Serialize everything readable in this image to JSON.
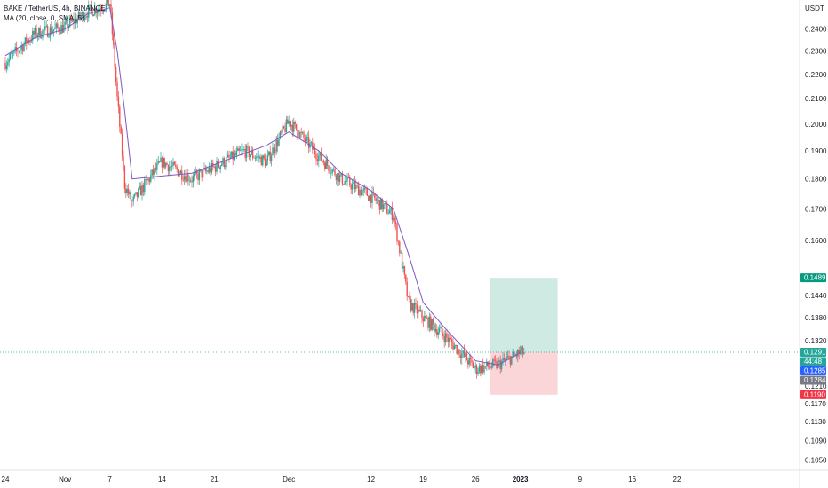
{
  "legend": {
    "title": "BAKE / TetherUS, 4h, BINANCE",
    "indicator": "MA (20, close, 0, SMA, 5)"
  },
  "currency_label": "USDT",
  "colors": {
    "up": "#26a69a",
    "down": "#ef5350",
    "ma": "#7e57c2",
    "target_zone": "#cfe9e3",
    "stop_zone": "#fad6d9",
    "current_price_line": "#26a69a",
    "badge_current": "#26a69a",
    "badge_target": "#089981",
    "badge_blue": "#2962ff",
    "badge_gray": "#787b86",
    "badge_stop": "#f23645"
  },
  "chart_data": {
    "type": "candlestick",
    "title": "BAKE / TetherUS, 4h, BINANCE",
    "ylabel": "USDT",
    "yscale": "log",
    "ylim": [
      0.104,
      0.252
    ],
    "y_ticks": [
      "0.2400",
      "0.2300",
      "0.2200",
      "0.2100",
      "0.2000",
      "0.1900",
      "0.1800",
      "0.1700",
      "0.1600",
      "0.1440",
      "0.1380",
      "0.1320",
      "0.1210",
      "0.1170",
      "0.1130",
      "0.1090",
      "0.1050"
    ],
    "x_ticks": [
      "24",
      "Nov",
      "7",
      "14",
      "21",
      "Dec",
      "12",
      "19",
      "26",
      "2023",
      "9",
      "16",
      "22"
    ],
    "series": [
      {
        "name": "MA (20, close, 0, SMA, 5)",
        "x": [
          "2022-10-24",
          "2022-10-28",
          "2022-11-01",
          "2022-11-04",
          "2022-11-07",
          "2022-11-08",
          "2022-11-09",
          "2022-11-10",
          "2022-11-14",
          "2022-11-18",
          "2022-11-21",
          "2022-11-25",
          "2022-11-28",
          "2022-12-01",
          "2022-12-05",
          "2022-12-08",
          "2022-12-12",
          "2022-12-15",
          "2022-12-17",
          "2022-12-19",
          "2022-12-22",
          "2022-12-26",
          "2022-12-29",
          "2023-01-01"
        ],
        "y": [
          0.228,
          0.236,
          0.24,
          0.247,
          0.25,
          0.23,
          0.205,
          0.18,
          0.181,
          0.182,
          0.185,
          0.189,
          0.192,
          0.197,
          0.19,
          0.182,
          0.176,
          0.17,
          0.156,
          0.142,
          0.135,
          0.127,
          0.126,
          0.129
        ]
      }
    ],
    "price_path": {
      "x": [
        "2022-10-24",
        "2022-10-28",
        "2022-11-01",
        "2022-11-04",
        "2022-11-07",
        "2022-11-08",
        "2022-11-09",
        "2022-11-10",
        "2022-11-14",
        "2022-11-18",
        "2022-11-21",
        "2022-11-25",
        "2022-11-28",
        "2022-12-01",
        "2022-12-05",
        "2022-12-08",
        "2022-12-12",
        "2022-12-15",
        "2022-12-17",
        "2022-12-19",
        "2022-12-22",
        "2022-12-26",
        "2022-12-29",
        "2023-01-01"
      ],
      "close": [
        0.225,
        0.238,
        0.241,
        0.248,
        0.252,
        0.21,
        0.178,
        0.172,
        0.186,
        0.18,
        0.184,
        0.19,
        0.186,
        0.201,
        0.188,
        0.18,
        0.174,
        0.168,
        0.142,
        0.138,
        0.133,
        0.125,
        0.126,
        0.129
      ]
    },
    "position": {
      "entry": 0.1291,
      "target": 0.1489,
      "stop": 0.119,
      "from": "2022-12-28",
      "to": "2023-01-06"
    },
    "price_badges": [
      {
        "label": "0.1489",
        "value": 0.1489,
        "color": "badge_target"
      },
      {
        "label": "0.1291",
        "value": 0.1291,
        "color": "badge_current"
      },
      {
        "label": "44:48",
        "value": 0.1288,
        "color": "badge_current"
      },
      {
        "label": "0.1285",
        "value": 0.1285,
        "color": "badge_blue"
      },
      {
        "label": "0.1284",
        "value": 0.1284,
        "color": "badge_gray"
      },
      {
        "label": "0.1190",
        "value": 0.119,
        "color": "badge_stop"
      }
    ]
  }
}
